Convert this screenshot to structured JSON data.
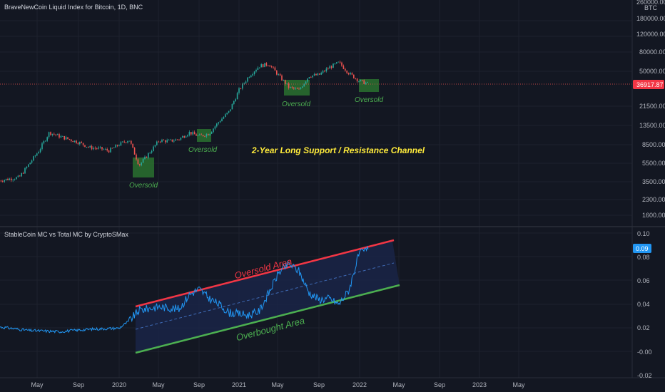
{
  "pane_top": {
    "title": "BraveNewCoin Liquid Index for Bitcoin, 1D, BNC",
    "axis_unit": "BTC",
    "price_label": "36917.87",
    "tick_labels": [
      "260000.00",
      "180000.00",
      "120000.00",
      "80000.00",
      "50000.00",
      "21500.00",
      "13500.00",
      "8500.00",
      "5500.00",
      "3500.00",
      "2300.00",
      "1600.00"
    ],
    "oversold_label": "Oversold",
    "channel_title": "2-Year Long Support / Resistance Channel"
  },
  "pane_bottom": {
    "title": "StableCoin MC vs Total MC by CryptoSMax",
    "value_label": "0.09",
    "tick_labels": [
      "0.10",
      "0.08",
      "0.06",
      "0.04",
      "0.02",
      "-0.00",
      "-0.02"
    ],
    "resistance_label": "Oversold Area",
    "support_label": "Overbought Area"
  },
  "x_axis": {
    "labels": [
      "May",
      "Sep",
      "2020",
      "May",
      "Sep",
      "2021",
      "May",
      "Sep",
      "2022",
      "May",
      "Sep",
      "2023",
      "May"
    ]
  },
  "colors": {
    "background": "#131722",
    "grid": "#1e222d",
    "up": "#26a69a",
    "down": "#ef5350",
    "indicator": "#2196f3",
    "resistance": "#f23645",
    "support": "#4caf50",
    "oversold_box": "#2e7d32",
    "annotation": "#ffeb3b",
    "channel_fill": "#1a2547"
  },
  "chart_data": [
    {
      "type": "line",
      "title": "BraveNewCoin Liquid Index for Bitcoin, 1D, BNC",
      "y_scale": "log",
      "x": [
        "2019-01",
        "2019-03",
        "2019-05",
        "2019-06",
        "2019-07",
        "2019-09",
        "2019-10",
        "2019-11",
        "2019-12",
        "2020-01",
        "2020-02",
        "2020-03",
        "2020-04",
        "2020-05",
        "2020-06",
        "2020-07",
        "2020-08",
        "2020-09",
        "2020-10",
        "2020-11",
        "2020-12",
        "2021-01",
        "2021-02",
        "2021-03",
        "2021-04",
        "2021-05",
        "2021-06",
        "2021-07",
        "2021-08",
        "2021-09",
        "2021-10",
        "2021-11",
        "2021-12",
        "2022-01",
        "2022-02"
      ],
      "values": [
        3600,
        3900,
        7500,
        11500,
        10500,
        9000,
        8000,
        7800,
        7400,
        8600,
        9700,
        5200,
        7000,
        9500,
        9300,
        9800,
        11500,
        10500,
        11200,
        15000,
        19000,
        32000,
        45000,
        57000,
        60000,
        45000,
        34000,
        32000,
        45000,
        46000,
        55000,
        62000,
        48000,
        40000,
        37000
      ],
      "current_value": 36917.87,
      "oversold_markers": [
        "2020-03",
        "2020-09",
        "2021-06",
        "2022-01"
      ]
    },
    {
      "type": "line",
      "title": "StableCoin MC vs Total MC by CryptoSMax",
      "ylim": [
        -0.02,
        0.1
      ],
      "x": [
        "2019-01",
        "2019-04",
        "2019-07",
        "2019-10",
        "2020-01",
        "2020-02",
        "2020-03",
        "2020-05",
        "2020-07",
        "2020-08",
        "2020-09",
        "2020-10",
        "2020-11",
        "2020-12",
        "2021-01",
        "2021-02",
        "2021-03",
        "2021-04",
        "2021-05",
        "2021-06",
        "2021-07",
        "2021-08",
        "2021-09",
        "2021-10",
        "2021-11",
        "2021-12",
        "2022-01",
        "2022-02"
      ],
      "values": [
        0.021,
        0.018,
        0.017,
        0.019,
        0.02,
        0.026,
        0.035,
        0.038,
        0.036,
        0.048,
        0.053,
        0.045,
        0.04,
        0.033,
        0.032,
        0.031,
        0.034,
        0.05,
        0.067,
        0.074,
        0.068,
        0.05,
        0.044,
        0.045,
        0.04,
        0.052,
        0.082,
        0.087
      ],
      "current_value": 0.09,
      "channel": {
        "resistance": {
          "start": [
            "2020-02",
            0.04
          ],
          "end": [
            "2022-03",
            0.094
          ]
        },
        "support": {
          "start": [
            "2020-02",
            -0.001
          ],
          "end": [
            "2022-04",
            0.057
          ]
        }
      }
    }
  ]
}
